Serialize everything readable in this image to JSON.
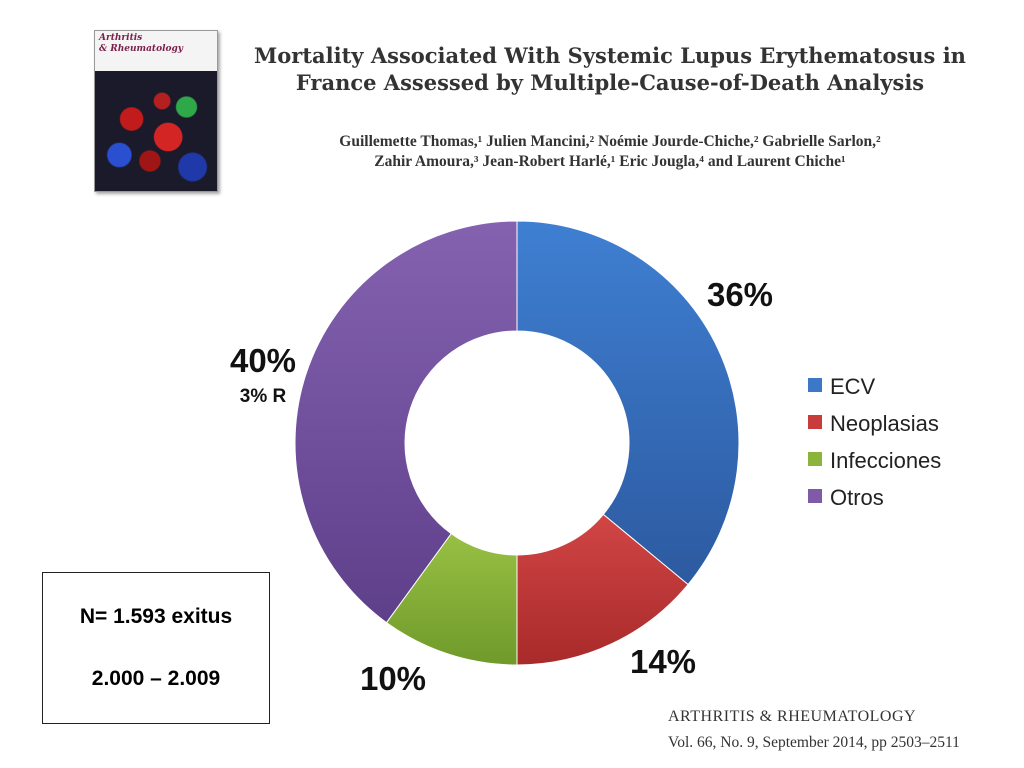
{
  "journal_cover": {
    "logo_line_1": "Arthritis",
    "logo_line_2": "& Rheumatology"
  },
  "title": {
    "line1": "Mortality Associated With Systemic Lupus Erythematosus in",
    "line2": "France Assessed by Multiple-Cause-of-Death Analysis"
  },
  "authors": {
    "line1": "Guillemette Thomas,¹ Julien Mancini,² Noémie Jourde-Chiche,² Gabrielle Sarlon,²",
    "line2": "Zahir Amoura,³ Jean-Robert Harlé,¹ Eric Jougla,⁴ and Laurent Chiche¹"
  },
  "chart_data": {
    "type": "pie",
    "style": "donut",
    "categories": [
      "ECV",
      "Neoplasias",
      "Infecciones",
      "Otros"
    ],
    "values": [
      36,
      14,
      10,
      40
    ],
    "data_labels": [
      "36%",
      "14%",
      "10%",
      "40%"
    ],
    "sub_annotation": "3% R",
    "colors": [
      "#3c78c8",
      "#c83c3c",
      "#8cb43c",
      "#7e5aa8"
    ],
    "legend_placement": "right"
  },
  "info_box": {
    "line1": "N= 1.593 exitus",
    "line2": "2.000 – 2.009"
  },
  "citation": {
    "journal": "ARTHRITIS & RHEUMATOLOGY",
    "volume": "Vol. 66, No. 9, September 2014, pp 2503–2511"
  }
}
